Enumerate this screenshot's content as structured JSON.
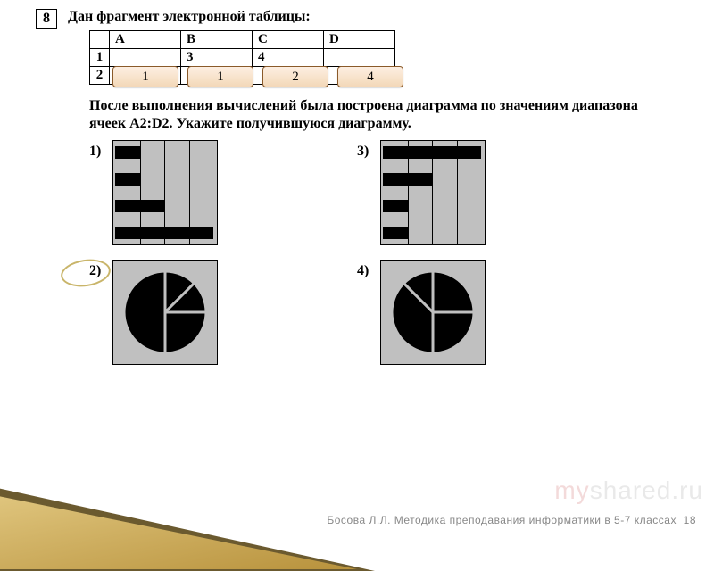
{
  "question_number": "8",
  "prompt_line": "Дан фрагмент электронной таблицы:",
  "table": {
    "columns": [
      "A",
      "B",
      "C",
      "D"
    ],
    "rows_hdr": [
      "1",
      "2"
    ],
    "row1": [
      "",
      "3",
      "4",
      ""
    ],
    "row2": [
      "",
      "",
      "",
      ""
    ]
  },
  "answers_overlay": [
    "1",
    "1",
    "2",
    "4"
  ],
  "paragraph2": "После выполнения вычислений была построена диаграмма по значениям диапазона ячеек A2:D2. Укажите получившуюся диаграмму.",
  "options": {
    "labels": [
      "1)",
      "2)",
      "3)",
      "4)"
    ],
    "circled_index": 1,
    "bar1": {
      "values": [
        1,
        1,
        2,
        4
      ],
      "max": 4,
      "gridlines": 3
    },
    "bar3": {
      "values": [
        4,
        2,
        1,
        1
      ],
      "max": 4,
      "gridlines": 3
    },
    "pie2": {
      "slices": [
        45,
        45,
        90,
        180
      ],
      "colors": [
        "#000",
        "#000",
        "#000",
        "#000"
      ]
    },
    "pie4": {
      "slices": [
        90,
        90,
        135,
        45
      ],
      "colors": [
        "#000",
        "#000",
        "#000",
        "#000"
      ]
    }
  },
  "footer_author": "Босова Л.Л. Методика преподавания информатики в 5-7 классах",
  "footer_page": "18",
  "watermark_a": "my",
  "watermark_b": "shared",
  "watermark_c": ".ru",
  "colors": {
    "bg": "#ffffff",
    "chart_bg": "#c0c0c0",
    "ink": "#000000",
    "overlay_border": "#8a5a2a",
    "overlay_fill_top": "#fdefe2",
    "overlay_fill_bot": "#f3d8b8",
    "ellipse": "#c9b56a"
  }
}
